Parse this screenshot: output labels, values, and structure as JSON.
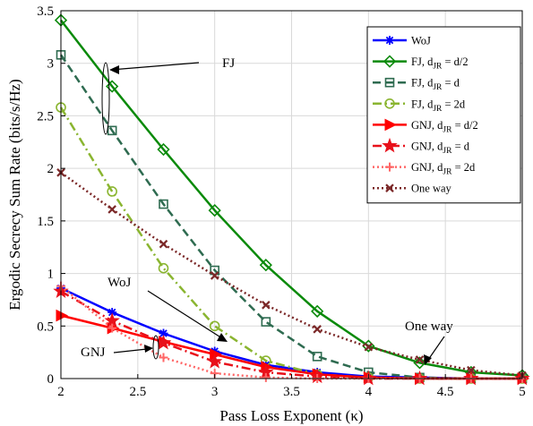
{
  "chart_data": {
    "type": "line",
    "xlabel": "Pass Loss Exponent (κ)",
    "ylabel": "Ergodic Secrecy Sum Rate (bits/s/Hz)",
    "xlim": [
      2,
      5
    ],
    "ylim": [
      0,
      3.5
    ],
    "xticks": [
      "2",
      "2.5",
      "3",
      "3.5",
      "4",
      "4.5",
      "5"
    ],
    "yticks": [
      "0",
      "0.5",
      "1",
      "1.5",
      "2",
      "2.5",
      "3",
      "3.5"
    ],
    "grid": true,
    "legend_position": "top-right",
    "x": [
      2,
      2.333,
      2.667,
      3,
      3.333,
      3.667,
      4,
      4.333,
      4.667,
      5
    ],
    "series": [
      {
        "name": "WoJ",
        "name_main": "WoJ",
        "name_sub": "",
        "name_suffix": "",
        "color": "#0000ff",
        "dash": "solid",
        "width": 2.5,
        "marker": "asterisk",
        "values": [
          0.86,
          0.63,
          0.43,
          0.26,
          0.13,
          0.06,
          0.02,
          0.01,
          0.0,
          0.0
        ]
      },
      {
        "name": "FJ, d_JR = d/2",
        "name_main": "FJ, d",
        "name_sub": "JR",
        "name_suffix": " = d/2",
        "color": "#0a8a0a",
        "dash": "solid",
        "width": 2.5,
        "marker": "diamond",
        "values": [
          3.41,
          2.78,
          2.18,
          1.6,
          1.08,
          0.64,
          0.31,
          0.15,
          0.06,
          0.03
        ]
      },
      {
        "name": "FJ, d_JR = d",
        "name_main": "FJ, d",
        "name_sub": "JR",
        "name_suffix": " = d",
        "color": "#2e6b50",
        "dash": "dashed",
        "width": 2.5,
        "marker": "square",
        "values": [
          3.08,
          2.36,
          1.66,
          1.03,
          0.54,
          0.21,
          0.06,
          0.01,
          0.0,
          0.0
        ]
      },
      {
        "name": "FJ, d_JR = 2d",
        "name_main": "FJ, d",
        "name_sub": "JR",
        "name_suffix": " = 2d",
        "color": "#8ab530",
        "dash": "dashdot",
        "width": 2.5,
        "marker": "circle",
        "values": [
          2.58,
          1.78,
          1.05,
          0.5,
          0.17,
          0.04,
          0.01,
          0.0,
          0.0,
          0.0
        ]
      },
      {
        "name": "GNJ, d_JR = d/2",
        "name_main": "GNJ, d",
        "name_sub": "JR",
        "name_suffix": " = d/2",
        "color": "#ff0000",
        "dash": "solid",
        "width": 2.5,
        "marker": "triangle-right",
        "values": [
          0.6,
          0.48,
          0.35,
          0.23,
          0.11,
          0.04,
          0.01,
          0.0,
          0.0,
          0.0
        ]
      },
      {
        "name": "GNJ, d_JR = d",
        "name_main": "GNJ, d",
        "name_sub": "JR",
        "name_suffix": " = d",
        "color": "#e8101a",
        "dash": "dashdot",
        "width": 2.5,
        "marker": "star",
        "values": [
          0.83,
          0.55,
          0.34,
          0.16,
          0.06,
          0.02,
          0.0,
          0.0,
          0.0,
          0.0
        ]
      },
      {
        "name": "GNJ, d_JR = 2d",
        "name_main": "GNJ, d",
        "name_sub": "JR",
        "name_suffix": " = 2d",
        "color": "#ff6666",
        "dash": "dotted",
        "width": 2.5,
        "marker": "plus",
        "values": [
          0.88,
          0.48,
          0.2,
          0.05,
          0.01,
          0.0,
          0.0,
          0.0,
          0.0,
          0.0
        ]
      },
      {
        "name": "One way",
        "name_main": "One way",
        "name_sub": "",
        "name_suffix": "",
        "color": "#7b2828",
        "dash": "dotted",
        "width": 2.5,
        "marker": "x",
        "values": [
          1.96,
          1.61,
          1.28,
          0.98,
          0.7,
          0.47,
          0.3,
          0.18,
          0.08,
          0.03
        ]
      }
    ],
    "annotations": [
      {
        "text": "FJ"
      },
      {
        "text": "WoJ"
      },
      {
        "text": "GNJ"
      },
      {
        "text": "One way"
      }
    ]
  }
}
